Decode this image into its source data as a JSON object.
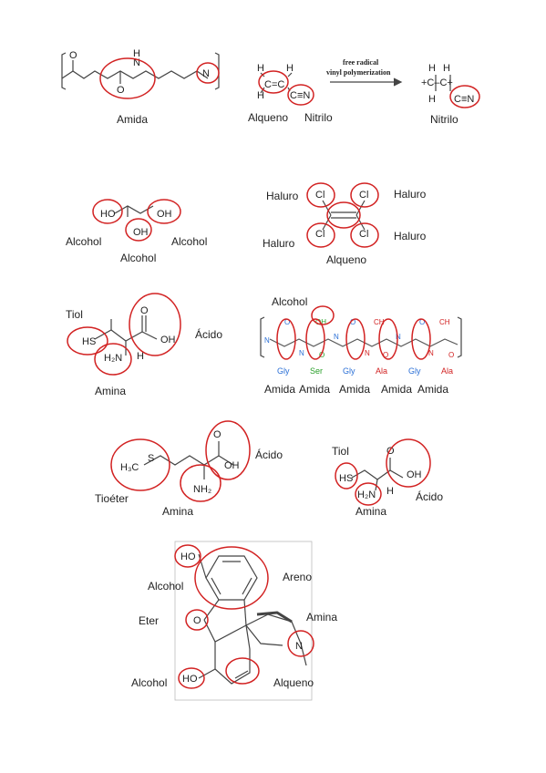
{
  "colors": {
    "highlight": "#d22222",
    "bond": "#444444",
    "gly": "#2a6fd6",
    "ser": "#2aa02a",
    "ala": "#d22222"
  },
  "row1": {
    "amide_label": "Amida",
    "alkene_label": "Alqueno",
    "nitrile_label_1": "Nitrilo",
    "nitrile_label_2": "Nitrilo",
    "arrow_text_1": "free radical",
    "arrow_text_2": "vinyl polymerization"
  },
  "row2": {
    "alcohol_left": "Alcohol",
    "alcohol_right": "Alcohol",
    "alcohol_bottom": "Alcohol",
    "halide_tl": "Haluro",
    "halide_tr": "Haluro",
    "halide_bl": "Haluro",
    "halide_br": "Haluro",
    "alkene_label": "Alqueno"
  },
  "row3": {
    "thiol": "Tiol",
    "acid": "Ácido",
    "amine": "Amina",
    "alcohol": "Alcohol",
    "peptide_residues": [
      "Gly",
      "Ser",
      "Gly",
      "Ala",
      "Gly",
      "Ala"
    ],
    "amide_labels": [
      "Amida",
      "Amida",
      "Amida",
      "Amida",
      "Amida"
    ]
  },
  "row4": {
    "acid_left": "Ácido",
    "thioether": "Tioéter",
    "amine_left": "Amina",
    "thiol": "Tiol",
    "acid_right": "Ácido",
    "amine_right": "Amina"
  },
  "row5": {
    "alcohol_top": "Alcohol",
    "arene": "Areno",
    "ether": "Eter",
    "amine": "Amina",
    "alcohol_bottom": "Alcohol",
    "alkene": "Alqueno"
  }
}
